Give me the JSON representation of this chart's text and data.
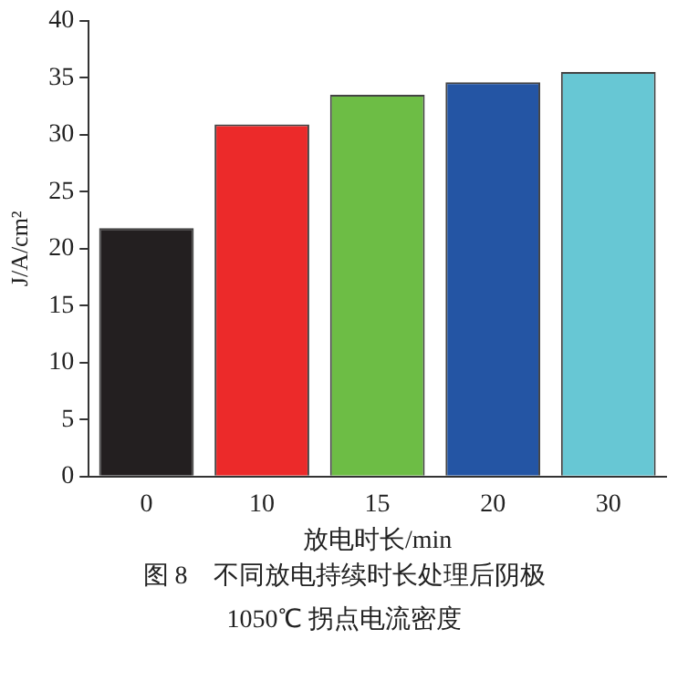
{
  "chart_data": {
    "type": "bar",
    "xlabel": "放电时长/min",
    "ylabel": "J/A/cm²",
    "categories": [
      "0",
      "10",
      "15",
      "20",
      "30"
    ],
    "values": [
      21.8,
      30.9,
      33.5,
      34.6,
      35.5
    ],
    "colors": [
      "#231f20",
      "#ec2a2a",
      "#6dbd45",
      "#2455a4",
      "#67c7d4"
    ],
    "ylim": [
      0,
      40
    ],
    "yticks": [
      0,
      5,
      10,
      15,
      20,
      25,
      30,
      35,
      40
    ],
    "grid": false,
    "legend": false,
    "annotations": [
      "图 8　不同放电持续时长处理后阴极",
      "1050℃ 拐点电流密度"
    ]
  }
}
